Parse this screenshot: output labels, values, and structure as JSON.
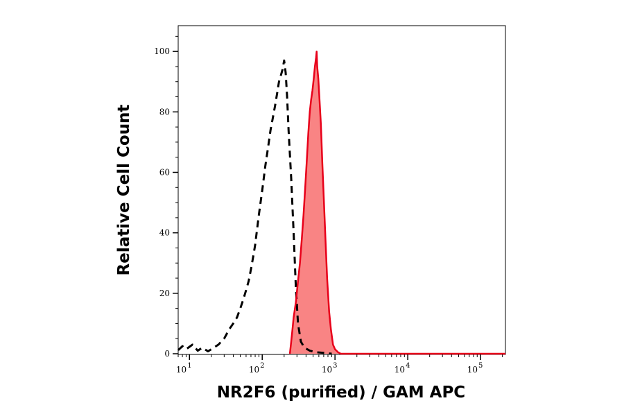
{
  "chart_data": {
    "type": "area",
    "xlabel": "NR2F6 (purified) / GAM APC",
    "ylabel": "Relative Cell Count",
    "x_scale": "log",
    "xlim": [
      7,
      220000
    ],
    "ylim": [
      0,
      106
    ],
    "grid": false,
    "y_ticks": [
      {
        "value": 0,
        "label": "0"
      },
      {
        "value": 20,
        "label": "20"
      },
      {
        "value": 40,
        "label": "40"
      },
      {
        "value": 60,
        "label": "60"
      },
      {
        "value": 80,
        "label": "80"
      },
      {
        "value": 100,
        "label": "100"
      }
    ],
    "x_ticks": [
      {
        "value": 10,
        "base": "10",
        "exp": "1"
      },
      {
        "value": 100,
        "base": "10",
        "exp": "2"
      },
      {
        "value": 1000,
        "base": "10",
        "exp": "3"
      },
      {
        "value": 10000,
        "base": "10",
        "exp": "4"
      },
      {
        "value": 100000,
        "base": "10",
        "exp": "5"
      }
    ],
    "series": [
      {
        "style": "dashed",
        "color": "#000000",
        "fill": "none",
        "points": [
          [
            7,
            1.2
          ],
          [
            8,
            2.5
          ],
          [
            9,
            1.5
          ],
          [
            11,
            3
          ],
          [
            13,
            1
          ],
          [
            15,
            2
          ],
          [
            18,
            0.8
          ],
          [
            20,
            1.5
          ],
          [
            25,
            3
          ],
          [
            30,
            5
          ],
          [
            35,
            8
          ],
          [
            40,
            10
          ],
          [
            45,
            12
          ],
          [
            50,
            15
          ],
          [
            55,
            18
          ],
          [
            60,
            21
          ],
          [
            65,
            24
          ],
          [
            70,
            28
          ],
          [
            75,
            32
          ],
          [
            80,
            36
          ],
          [
            90,
            46
          ],
          [
            100,
            54
          ],
          [
            110,
            62
          ],
          [
            120,
            68
          ],
          [
            130,
            74
          ],
          [
            140,
            78
          ],
          [
            150,
            82
          ],
          [
            160,
            86
          ],
          [
            170,
            90
          ],
          [
            180,
            92
          ],
          [
            190,
            94
          ],
          [
            200,
            97
          ],
          [
            210,
            93
          ],
          [
            220,
            85
          ],
          [
            230,
            74
          ],
          [
            250,
            58
          ],
          [
            270,
            40
          ],
          [
            290,
            22
          ],
          [
            310,
            10
          ],
          [
            340,
            4
          ],
          [
            380,
            2
          ],
          [
            450,
            1
          ],
          [
            550,
            0.5
          ],
          [
            700,
            0.3
          ],
          [
            900,
            0
          ]
        ]
      },
      {
        "style": "solid",
        "color": "#e8001a",
        "fill": "#f98484",
        "points": [
          [
            240,
            0
          ],
          [
            250,
            4
          ],
          [
            260,
            8
          ],
          [
            270,
            12
          ],
          [
            290,
            17
          ],
          [
            310,
            24
          ],
          [
            330,
            30
          ],
          [
            350,
            38
          ],
          [
            370,
            46
          ],
          [
            390,
            55
          ],
          [
            410,
            64
          ],
          [
            430,
            73
          ],
          [
            450,
            80
          ],
          [
            470,
            84
          ],
          [
            490,
            87
          ],
          [
            510,
            91
          ],
          [
            530,
            95
          ],
          [
            550,
            98
          ],
          [
            560,
            100
          ],
          [
            570,
            95
          ],
          [
            590,
            91
          ],
          [
            610,
            85
          ],
          [
            640,
            76
          ],
          [
            670,
            63
          ],
          [
            700,
            52
          ],
          [
            740,
            38
          ],
          [
            780,
            25
          ],
          [
            830,
            14
          ],
          [
            880,
            8
          ],
          [
            940,
            3
          ],
          [
            1000,
            1.5
          ],
          [
            1100,
            0.5
          ],
          [
            1200,
            0
          ],
          [
            220000,
            0
          ]
        ]
      }
    ]
  }
}
